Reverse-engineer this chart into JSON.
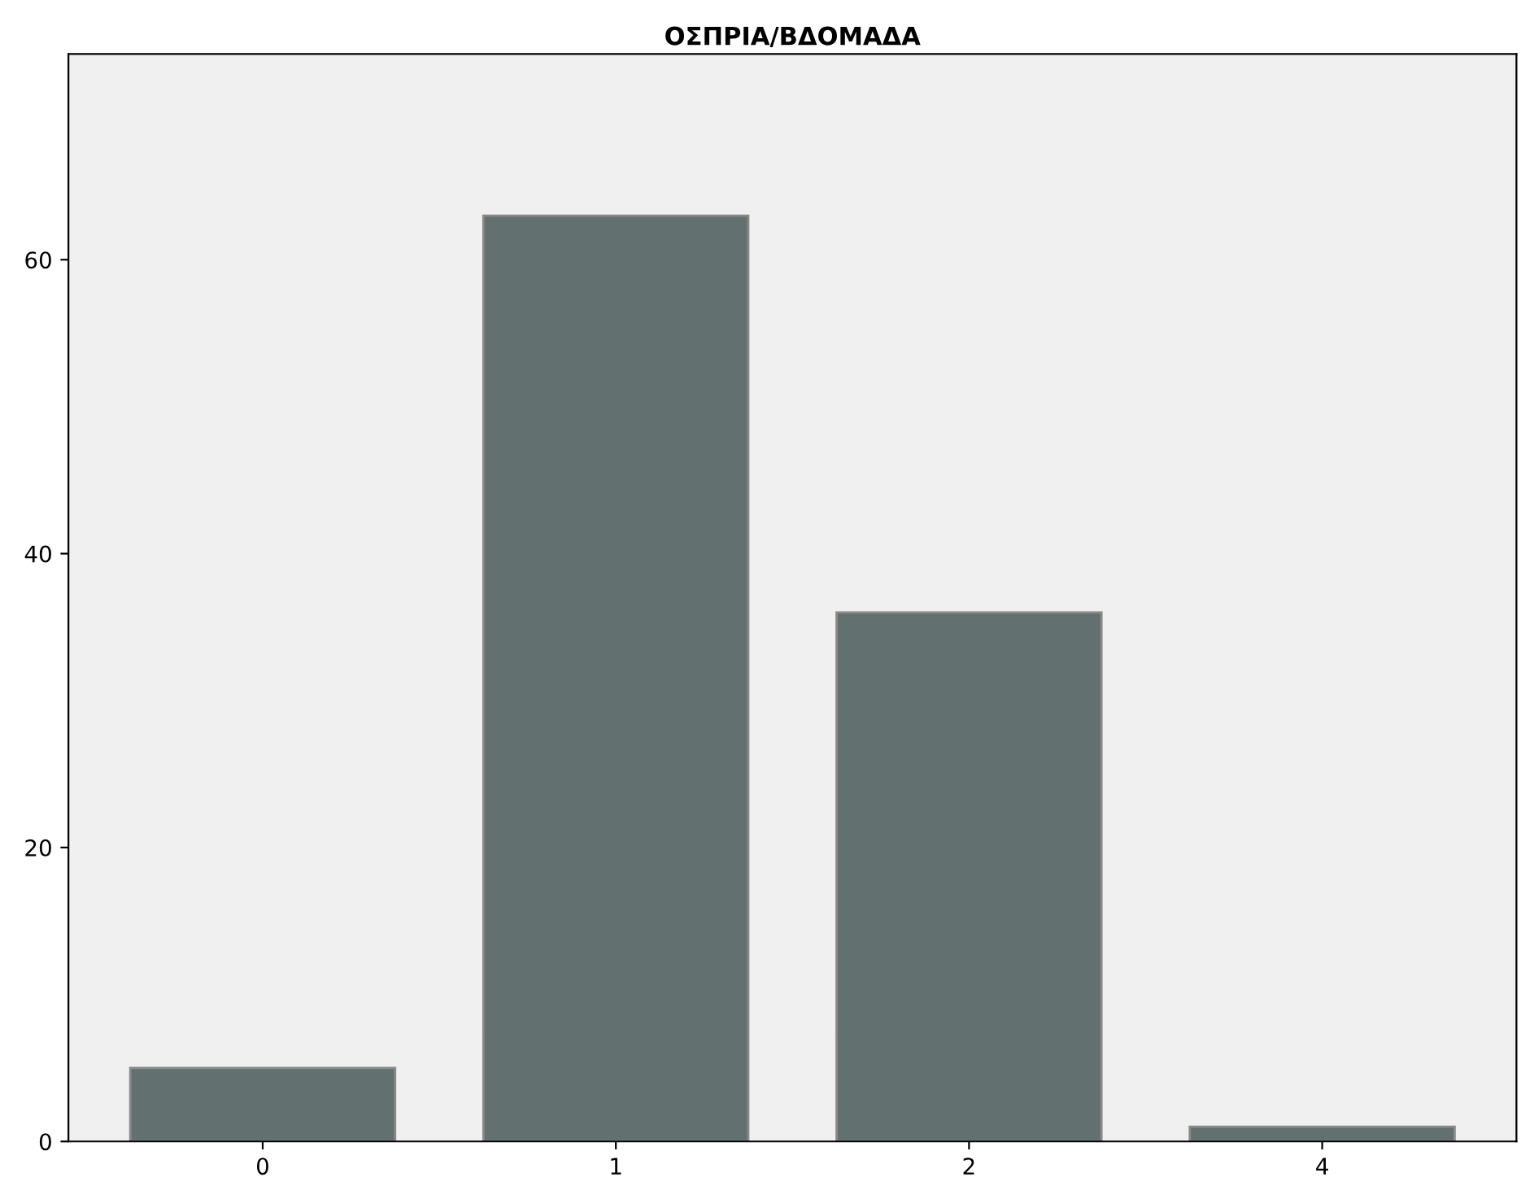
{
  "chart_data": {
    "type": "bar",
    "title": "ΟΣΠΡΙΑ/ΒΔΟΜΑΔΑ",
    "categories": [
      "0",
      "1",
      "2",
      "4"
    ],
    "values": [
      5,
      63,
      36,
      1
    ],
    "color": "#62706f",
    "ylim": [
      0,
      74
    ],
    "yticks": [
      0,
      20,
      40,
      60
    ],
    "grid": false,
    "legend": false
  }
}
